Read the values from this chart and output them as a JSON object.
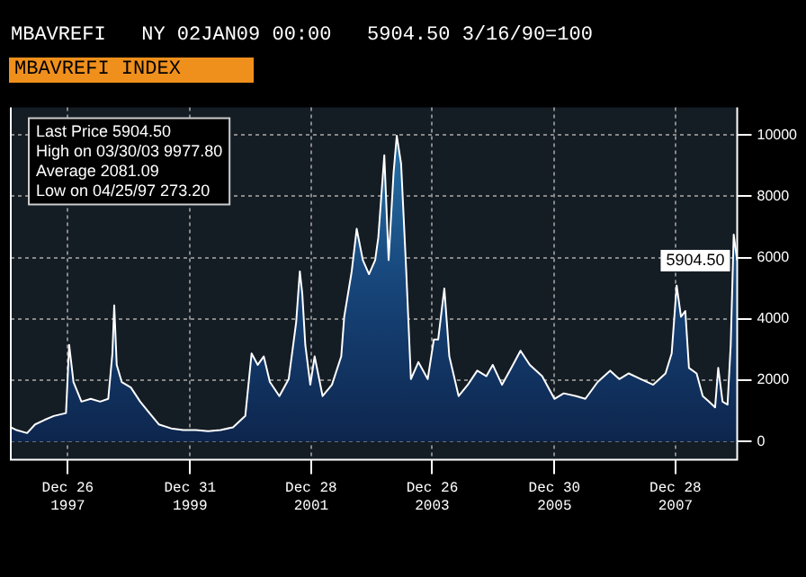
{
  "chart_data": {
    "type": "area",
    "title": "MBAVREFI INDEX",
    "subtitle": "MBAVREFI   NY 02JAN09 00:00   5904.50 3/16/90=100",
    "x": [
      "1997-01-17",
      "1997-02-21",
      "1997-04-25",
      "1997-06-12",
      "1997-08-07",
      "1997-10-02",
      "1997-12-15",
      "1998-01-03",
      "1998-01-29",
      "1998-03-18",
      "1998-05-13",
      "1998-07-08",
      "1998-08-26",
      "1998-09-20",
      "1998-10-01",
      "1998-10-16",
      "1998-11-15",
      "1999-01-09",
      "1999-03-06",
      "1999-05-01",
      "1999-06-26",
      "1999-09-08",
      "1999-11-21",
      "2000-02-04",
      "2000-04-18",
      "2000-07-01",
      "2000-09-14",
      "2000-11-27",
      "2001-01-04",
      "2001-02-10",
      "2001-03-18",
      "2001-04-24",
      "2001-06-20",
      "2001-08-15",
      "2001-09-29",
      "2001-10-21",
      "2001-11-05",
      "2001-11-23",
      "2001-12-23",
      "2002-01-18",
      "2002-03-07",
      "2002-05-02",
      "2002-06-27",
      "2002-07-15",
      "2002-08-29",
      "2002-09-28",
      "2002-11-04",
      "2002-12-11",
      "2003-01-17",
      "2003-02-05",
      "2003-03-13",
      "2003-04-08",
      "2003-05-08",
      "2003-05-27",
      "2003-06-22",
      "2003-07-23",
      "2003-08-20",
      "2003-10-04",
      "2003-11-29",
      "2004-01-05",
      "2004-01-31",
      "2004-03-08",
      "2004-04-07",
      "2004-06-02",
      "2004-07-27",
      "2004-09-22",
      "2004-11-16",
      "2004-12-24",
      "2005-02-18",
      "2005-04-15",
      "2005-06-09",
      "2005-08-04",
      "2005-10-17",
      "2005-12-30",
      "2006-02-24",
      "2006-05-10",
      "2006-07-04",
      "2006-09-16",
      "2006-11-30",
      "2007-01-24",
      "2007-03-22",
      "2007-06-03",
      "2007-08-16",
      "2007-10-29",
      "2007-12-05",
      "2008-01-04",
      "2008-01-30",
      "2008-02-25",
      "2008-03-18",
      "2008-05-03",
      "2008-06-09",
      "2008-07-16",
      "2008-08-22",
      "2008-09-10",
      "2008-10-06",
      "2008-11-05",
      "2008-11-24",
      "2008-12-12",
      "2009-01-02"
    ],
    "series": [
      {
        "color": "#ffffff",
        "values": [
          460,
          370,
          273,
          555,
          700,
          830,
          925,
          3150,
          1940,
          1300,
          1390,
          1300,
          1390,
          2870,
          4440,
          2500,
          1940,
          1760,
          1300,
          925,
          555,
          425,
          370,
          370,
          333,
          370,
          460,
          830,
          2870,
          2500,
          2775,
          1940,
          1480,
          2035,
          3885,
          5550,
          4810,
          3145,
          1850,
          2775,
          1480,
          1850,
          2775,
          4070,
          5550,
          6940,
          5920,
          5460,
          5920,
          6660,
          9340,
          5920,
          8790,
          9978,
          9065,
          5550,
          2035,
          2590,
          2035,
          3330,
          3330,
          4995,
          2775,
          1480,
          1850,
          2310,
          2130,
          2500,
          1850,
          2400,
          2960,
          2500,
          2130,
          1390,
          1570,
          1480,
          1390,
          1940,
          2310,
          2035,
          2220,
          2035,
          1850,
          2220,
          2870,
          5090,
          4070,
          4255,
          2400,
          2220,
          1480,
          1300,
          1110,
          2400,
          1300,
          1200,
          3145,
          6750,
          5904.5
        ]
      }
    ],
    "xlim": [
      "1997-01-17",
      "2009-01-02"
    ],
    "xticks": [
      {
        "value": "1997-12-26",
        "label": "Dec 26\n1997"
      },
      {
        "value": "1999-12-31",
        "label": "Dec 31\n1999"
      },
      {
        "value": "2001-12-28",
        "label": "Dec 28\n2001"
      },
      {
        "value": "2003-12-26",
        "label": "Dec 26\n2003"
      },
      {
        "value": "2005-12-30",
        "label": "Dec 30\n2005"
      },
      {
        "value": "2007-12-28",
        "label": "Dec 28\n2007"
      }
    ],
    "ylim": [
      -600,
      10900
    ],
    "yticks": [
      0,
      2000,
      4000,
      6000,
      8000,
      10000
    ],
    "grid": true,
    "legend": false,
    "line_style": "solid",
    "marker": "none",
    "annotations": [
      "Last Price 5904.50",
      "High on 03/30/03 9977.80",
      "Average 2081.09",
      "Low on 04/25/97 273.20",
      {
        "text": "5904.50",
        "x": "2009-01-02",
        "y": 5904.5
      }
    ]
  }
}
